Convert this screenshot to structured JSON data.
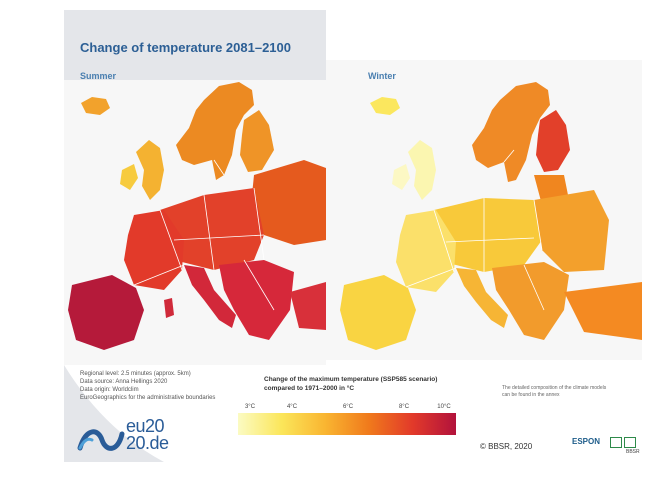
{
  "header": {
    "title": "Change of temperature 2081–2100"
  },
  "panels": [
    {
      "label": "Summer",
      "scenario": "summer"
    },
    {
      "label": "Winter",
      "scenario": "winter"
    }
  ],
  "meta_lines": [
    "Regional level: 2.5 minutes (approx. 5km)",
    "Data source: Anna Hellings 2020",
    "Data origin: Worldclim",
    "EuroGeographics for the administrative boundaries"
  ],
  "legend": {
    "title_line1": "Change of the maximum temperature (SSP585 scenario)",
    "title_line2": "compared to 1971–2000 in °C",
    "ticks": [
      "3°C",
      "4°C",
      "6°C",
      "8°C",
      "10°C"
    ],
    "colors": [
      "#fbfbc3",
      "#fbe65a",
      "#f9b531",
      "#f07a1c",
      "#e23a2a",
      "#b2123c"
    ]
  },
  "note": "The detailed composition of the climate models can be found in the annex",
  "copyright": "© BBSR, 2020",
  "logo": {
    "line1": "eu20",
    "line2": "20.de"
  },
  "partners": {
    "espon": "ESPON",
    "bbsr": "BBSR"
  },
  "colors": {
    "title": "#2c5f95",
    "sea": "#f4f4f6",
    "poster_bg": "#e4e6ea",
    "border_lines": "#ffffff"
  }
}
